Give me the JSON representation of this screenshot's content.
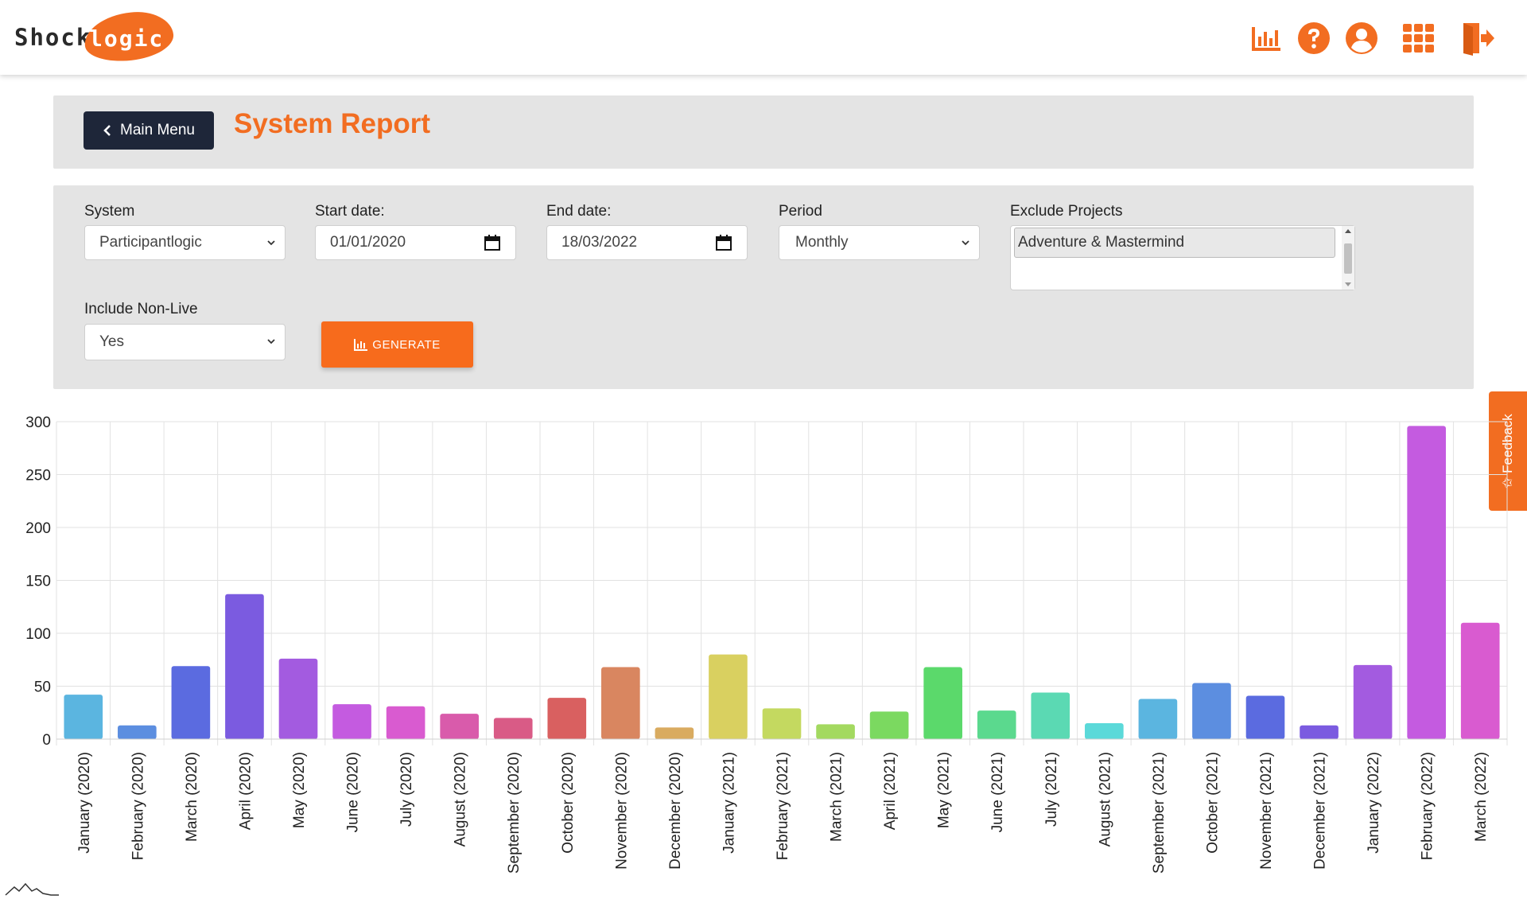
{
  "brand": {
    "logo_left": "Shock",
    "logo_right": "logic",
    "accent": "#f26d21",
    "dark": "#1e2639"
  },
  "topbar": {
    "icons": [
      "bar-chart-icon",
      "help-icon",
      "user-icon",
      "apps-grid-icon",
      "logout-icon"
    ]
  },
  "header": {
    "back_label": "Main Menu",
    "title": "System Report"
  },
  "filters": {
    "system": {
      "label": "System",
      "value": "Participantlogic"
    },
    "start_date": {
      "label": "Start date:",
      "value": "01/01/2020"
    },
    "end_date": {
      "label": "End date:",
      "value": "18/03/2022"
    },
    "period": {
      "label": "Period",
      "value": "Monthly"
    },
    "exclude_projects": {
      "label": "Exclude Projects",
      "options": [
        "Adventure & Mastermind"
      ]
    },
    "include_non_live": {
      "label": "Include Non-Live",
      "value": "Yes"
    },
    "generate_label": "GENERATE"
  },
  "feedback_label": "Feedback",
  "chart_data": {
    "type": "bar",
    "ylim": [
      0,
      300
    ],
    "yticks": [
      0,
      50,
      100,
      150,
      200,
      250,
      300
    ],
    "grid": true,
    "categories": [
      "January (2020)",
      "February (2020)",
      "March (2020)",
      "April (2020)",
      "May (2020)",
      "June (2020)",
      "July (2020)",
      "August (2020)",
      "September (2020)",
      "October (2020)",
      "November (2020)",
      "December (2020)",
      "January (2021)",
      "February (2021)",
      "March (2021)",
      "April (2021)",
      "May (2021)",
      "June (2021)",
      "July (2021)",
      "August (2021)",
      "September (2021)",
      "October (2021)",
      "November (2021)",
      "December (2021)",
      "January (2022)",
      "February (2022)",
      "March (2022)"
    ],
    "values": [
      42,
      13,
      69,
      137,
      76,
      33,
      31,
      24,
      20,
      39,
      68,
      11,
      80,
      29,
      14,
      26,
      68,
      27,
      44,
      15,
      38,
      53,
      41,
      13,
      70,
      296,
      110
    ],
    "colors": [
      "#5bb5e0",
      "#5c8ee0",
      "#5b6be0",
      "#7b5be0",
      "#a35be0",
      "#c45be0",
      "#d95bd0",
      "#d95bab",
      "#d95b86",
      "#d96060",
      "#d98660",
      "#d9ab60",
      "#d9d060",
      "#c4d960",
      "#a3d960",
      "#7bd960",
      "#5bd96b",
      "#5bd98e",
      "#5bd9b3",
      "#5bd9d9",
      "#5bb5e0",
      "#5c8ee0",
      "#5b6be0",
      "#7b5be0",
      "#a35be0",
      "#c45be0",
      "#d95bd0"
    ]
  }
}
